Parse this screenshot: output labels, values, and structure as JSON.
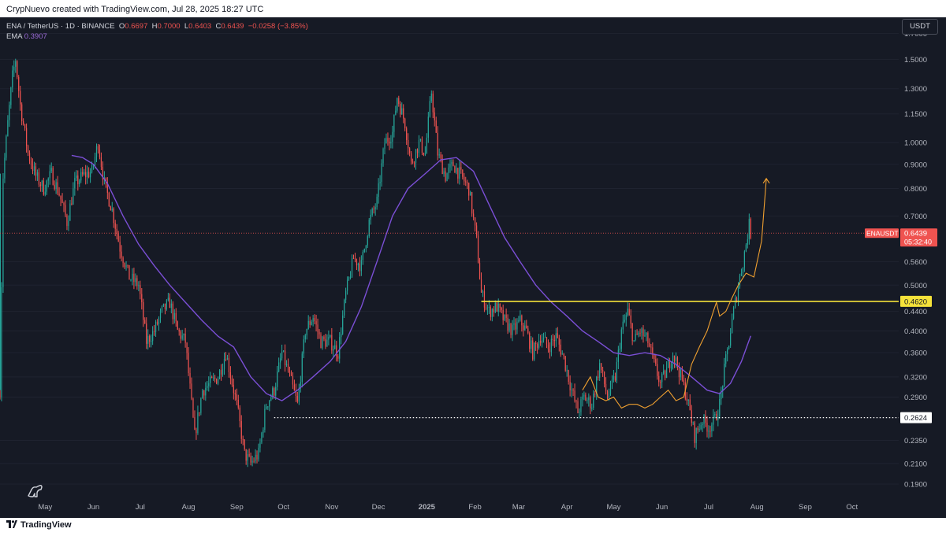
{
  "header": {
    "credit": "CrypNuevo created with TradingView.com, Jul 28, 2025 18:27 UTC",
    "symbol": "ENA / TetherUS · 1D · BINANCE",
    "ohlc": {
      "o_label": "O",
      "o": "0.6697",
      "h_label": "H",
      "h": "0.7000",
      "l_label": "L",
      "l": "0.6403",
      "c_label": "C",
      "c": "0.6439",
      "change": "−0.0258 (−3.85%)"
    },
    "ema_label": "EMA",
    "ema_value": "0.3907",
    "currency": "USDT"
  },
  "footer": {
    "brand": "TradingView"
  },
  "colors": {
    "background": "#161a25",
    "up": "#26a69a",
    "down": "#ef5350",
    "ema": "#7b4fd6",
    "support_line": "#f5e23a",
    "projection": "#f0a030"
  },
  "chart_data": {
    "type": "candlestick",
    "symbol": "ENAUSDT",
    "timeframe": "1D",
    "y_scale": "log",
    "ylim": [
      0.178,
      1.84
    ],
    "y_ticks": [
      "1.7000",
      "1.5000",
      "1.3000",
      "1.1500",
      "1.0000",
      "0.9000",
      "0.8000",
      "0.7000",
      "0.5600",
      "0.5000",
      "0.4400",
      "0.4000",
      "0.3600",
      "0.3200",
      "0.2900",
      "0.2350",
      "0.2100",
      "0.1900"
    ],
    "x_ticks": [
      "May",
      "Jun",
      "Jul",
      "Aug",
      "Sep",
      "Oct",
      "Nov",
      "Dec",
      "2025",
      "Feb",
      "Mar",
      "Apr",
      "May",
      "Jun",
      "Jul",
      "Aug",
      "Sep",
      "Oct"
    ],
    "x_range": [
      "2024-04-02",
      "2025-10-31"
    ],
    "last_price": {
      "label": "ENAUSDT",
      "value": "0.6439",
      "countdown": "05:32:40"
    },
    "horizontal_levels": [
      {
        "value": 0.462,
        "label": "0.4620",
        "style": "solid"
      },
      {
        "value": 0.2624,
        "label": "0.2624",
        "style": "dotted"
      }
    ],
    "price_path": [
      [
        "2024-04-02",
        0.3
      ],
      [
        "2024-04-04",
        0.85
      ],
      [
        "2024-04-07",
        1.1
      ],
      [
        "2024-04-10",
        1.38
      ],
      [
        "2024-04-12",
        1.5
      ],
      [
        "2024-04-15",
        1.2
      ],
      [
        "2024-04-20",
        0.95
      ],
      [
        "2024-04-25",
        0.85
      ],
      [
        "2024-04-30",
        0.8
      ],
      [
        "2024-05-05",
        0.86
      ],
      [
        "2024-05-10",
        0.78
      ],
      [
        "2024-05-15",
        0.68
      ],
      [
        "2024-05-20",
        0.82
      ],
      [
        "2024-05-25",
        0.85
      ],
      [
        "2024-05-31",
        0.87
      ],
      [
        "2024-06-04",
        1.0
      ],
      [
        "2024-06-08",
        0.82
      ],
      [
        "2024-06-13",
        0.72
      ],
      [
        "2024-06-18",
        0.6
      ],
      [
        "2024-06-24",
        0.52
      ],
      [
        "2024-06-30",
        0.5
      ],
      [
        "2024-07-05",
        0.38
      ],
      [
        "2024-07-10",
        0.4
      ],
      [
        "2024-07-15",
        0.44
      ],
      [
        "2024-07-20",
        0.46
      ],
      [
        "2024-07-25",
        0.4
      ],
      [
        "2024-07-30",
        0.38
      ],
      [
        "2024-08-05",
        0.24
      ],
      [
        "2024-08-10",
        0.3
      ],
      [
        "2024-08-15",
        0.31
      ],
      [
        "2024-08-20",
        0.32
      ],
      [
        "2024-08-25",
        0.36
      ],
      [
        "2024-09-01",
        0.28
      ],
      [
        "2024-09-06",
        0.22
      ],
      [
        "2024-09-10",
        0.21
      ],
      [
        "2024-09-15",
        0.22
      ],
      [
        "2024-09-20",
        0.28
      ],
      [
        "2024-09-25",
        0.3
      ],
      [
        "2024-09-30",
        0.36
      ],
      [
        "2024-10-05",
        0.32
      ],
      [
        "2024-10-10",
        0.28
      ],
      [
        "2024-10-15",
        0.4
      ],
      [
        "2024-10-20",
        0.43
      ],
      [
        "2024-10-25",
        0.38
      ],
      [
        "2024-10-31",
        0.38
      ],
      [
        "2024-11-05",
        0.36
      ],
      [
        "2024-11-10",
        0.48
      ],
      [
        "2024-11-15",
        0.57
      ],
      [
        "2024-11-20",
        0.55
      ],
      [
        "2024-11-25",
        0.68
      ],
      [
        "2024-11-30",
        0.75
      ],
      [
        "2024-12-05",
        1.0
      ],
      [
        "2024-12-10",
        1.05
      ],
      [
        "2024-12-13",
        1.25
      ],
      [
        "2024-12-18",
        1.1
      ],
      [
        "2024-12-22",
        0.9
      ],
      [
        "2024-12-27",
        1.0
      ],
      [
        "2024-12-31",
        0.95
      ],
      [
        "2025-01-04",
        1.28
      ],
      [
        "2025-01-08",
        0.95
      ],
      [
        "2025-01-13",
        0.85
      ],
      [
        "2025-01-18",
        0.9
      ],
      [
        "2025-01-23",
        0.85
      ],
      [
        "2025-01-28",
        0.8
      ],
      [
        "2025-02-02",
        0.62
      ],
      [
        "2025-02-05",
        0.48
      ],
      [
        "2025-02-10",
        0.44
      ],
      [
        "2025-02-15",
        0.45
      ],
      [
        "2025-02-20",
        0.42
      ],
      [
        "2025-02-25",
        0.4
      ],
      [
        "2025-03-02",
        0.42
      ],
      [
        "2025-03-06",
        0.4
      ],
      [
        "2025-03-10",
        0.36
      ],
      [
        "2025-03-15",
        0.39
      ],
      [
        "2025-03-20",
        0.37
      ],
      [
        "2025-03-25",
        0.39
      ],
      [
        "2025-03-30",
        0.35
      ],
      [
        "2025-04-04",
        0.3
      ],
      [
        "2025-04-08",
        0.27
      ],
      [
        "2025-04-12",
        0.29
      ],
      [
        "2025-04-17",
        0.28
      ],
      [
        "2025-04-22",
        0.34
      ],
      [
        "2025-04-27",
        0.29
      ],
      [
        "2025-05-02",
        0.32
      ],
      [
        "2025-05-06",
        0.4
      ],
      [
        "2025-05-10",
        0.44
      ],
      [
        "2025-05-14",
        0.38
      ],
      [
        "2025-05-18",
        0.4
      ],
      [
        "2025-05-23",
        0.38
      ],
      [
        "2025-05-27",
        0.34
      ],
      [
        "2025-05-31",
        0.31
      ],
      [
        "2025-06-04",
        0.33
      ],
      [
        "2025-06-08",
        0.36
      ],
      [
        "2025-06-12",
        0.33
      ],
      [
        "2025-06-17",
        0.29
      ],
      [
        "2025-06-22",
        0.24
      ],
      [
        "2025-06-27",
        0.26
      ],
      [
        "2025-07-01",
        0.25
      ],
      [
        "2025-07-05",
        0.26
      ],
      [
        "2025-07-08",
        0.28
      ],
      [
        "2025-07-11",
        0.33
      ],
      [
        "2025-07-14",
        0.38
      ],
      [
        "2025-07-17",
        0.44
      ],
      [
        "2025-07-20",
        0.5
      ],
      [
        "2025-07-23",
        0.56
      ],
      [
        "2025-07-26",
        0.64
      ],
      [
        "2025-07-27",
        0.67
      ],
      [
        "2025-07-28",
        0.6439
      ]
    ],
    "ema_path": [
      [
        "2024-05-18",
        0.94
      ],
      [
        "2024-05-25",
        0.93
      ],
      [
        "2024-06-01",
        0.9
      ],
      [
        "2024-06-10",
        0.82
      ],
      [
        "2024-06-20",
        0.7
      ],
      [
        "2024-06-30",
        0.61
      ],
      [
        "2024-07-10",
        0.55
      ],
      [
        "2024-07-20",
        0.5
      ],
      [
        "2024-07-30",
        0.46
      ],
      [
        "2024-08-10",
        0.42
      ],
      [
        "2024-08-20",
        0.39
      ],
      [
        "2024-08-30",
        0.37
      ],
      [
        "2024-09-10",
        0.32
      ],
      [
        "2024-09-20",
        0.295
      ],
      [
        "2024-09-30",
        0.285
      ],
      [
        "2024-10-10",
        0.3
      ],
      [
        "2024-10-20",
        0.32
      ],
      [
        "2024-10-31",
        0.345
      ],
      [
        "2024-11-10",
        0.38
      ],
      [
        "2024-11-20",
        0.45
      ],
      [
        "2024-11-30",
        0.56
      ],
      [
        "2024-12-10",
        0.7
      ],
      [
        "2024-12-20",
        0.8
      ],
      [
        "2024-12-31",
        0.86
      ],
      [
        "2025-01-10",
        0.92
      ],
      [
        "2025-01-20",
        0.93
      ],
      [
        "2025-01-31",
        0.87
      ],
      [
        "2025-02-10",
        0.74
      ],
      [
        "2025-02-20",
        0.63
      ],
      [
        "2025-03-02",
        0.56
      ],
      [
        "2025-03-12",
        0.5
      ],
      [
        "2025-03-22",
        0.46
      ],
      [
        "2025-04-01",
        0.43
      ],
      [
        "2025-04-11",
        0.4
      ],
      [
        "2025-04-21",
        0.38
      ],
      [
        "2025-05-01",
        0.36
      ],
      [
        "2025-05-11",
        0.355
      ],
      [
        "2025-05-21",
        0.36
      ],
      [
        "2025-05-31",
        0.355
      ],
      [
        "2025-06-10",
        0.34
      ],
      [
        "2025-06-20",
        0.32
      ],
      [
        "2025-06-30",
        0.3
      ],
      [
        "2025-07-08",
        0.295
      ],
      [
        "2025-07-15",
        0.31
      ],
      [
        "2025-07-22",
        0.345
      ],
      [
        "2025-07-28",
        0.3907
      ]
    ],
    "projection_path": [
      [
        "2025-04-11",
        0.3
      ],
      [
        "2025-04-16",
        0.32
      ],
      [
        "2025-04-21",
        0.29
      ],
      [
        "2025-04-26",
        0.285
      ],
      [
        "2025-05-01",
        0.29
      ],
      [
        "2025-05-06",
        0.275
      ],
      [
        "2025-05-11",
        0.28
      ],
      [
        "2025-05-16",
        0.28
      ],
      [
        "2025-05-21",
        0.275
      ],
      [
        "2025-05-26",
        0.28
      ],
      [
        "2025-05-31",
        0.29
      ],
      [
        "2025-06-05",
        0.3
      ],
      [
        "2025-06-10",
        0.285
      ],
      [
        "2025-06-15",
        0.29
      ],
      [
        "2025-06-20",
        0.34
      ],
      [
        "2025-06-25",
        0.37
      ],
      [
        "2025-06-30",
        0.4
      ],
      [
        "2025-07-04",
        0.44
      ],
      [
        "2025-07-06",
        0.46
      ],
      [
        "2025-07-08",
        0.43
      ],
      [
        "2025-07-12",
        0.44
      ],
      [
        "2025-07-16",
        0.47
      ],
      [
        "2025-07-20",
        0.5
      ],
      [
        "2025-07-25",
        0.53
      ],
      [
        "2025-07-30",
        0.52
      ],
      [
        "2025-08-04",
        0.62
      ],
      [
        "2025-08-07",
        0.84
      ]
    ]
  }
}
